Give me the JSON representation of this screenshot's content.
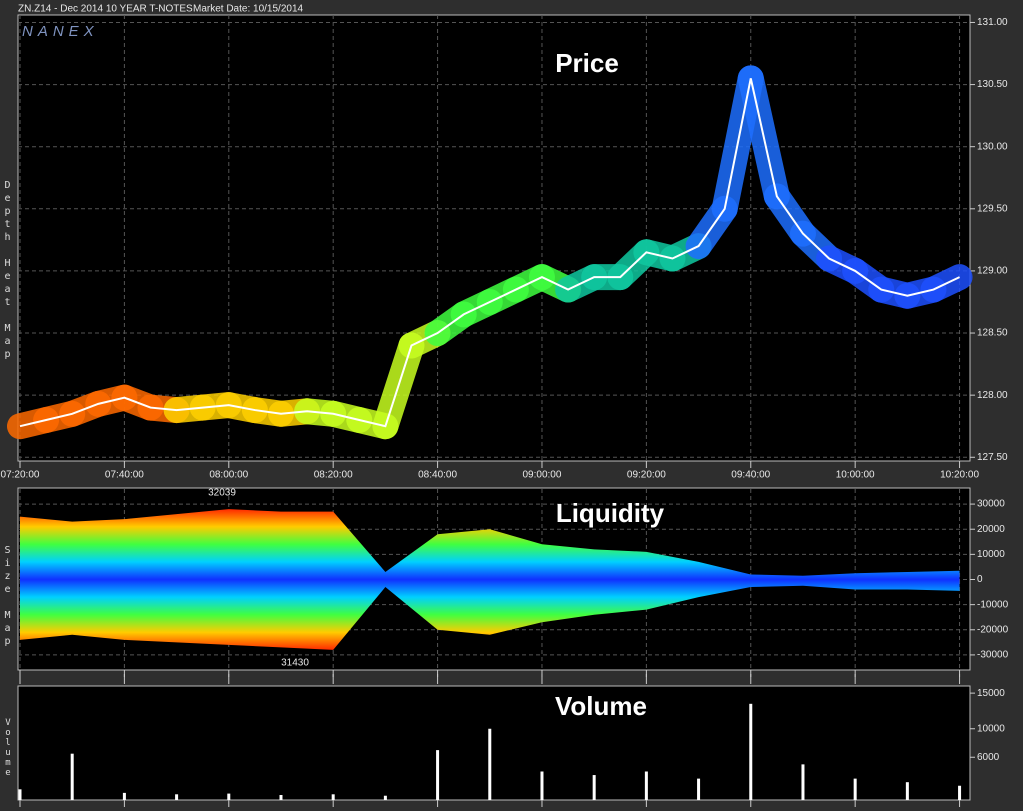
{
  "header": {
    "symbol": "ZN.Z14 - Dec 2014 10 YEAR T-NOTES",
    "market_date": "Market Date: 10/15/2014",
    "brand": "NANEX"
  },
  "chart_data": [
    {
      "type": "line",
      "title": "Price",
      "y_label": "Depth Heat Map",
      "x": [
        "07:20:00",
        "07:25:00",
        "07:30:00",
        "07:35:00",
        "07:40:00",
        "07:45:00",
        "07:50:00",
        "07:55:00",
        "08:00:00",
        "08:05:00",
        "08:10:00",
        "08:15:00",
        "08:20:00",
        "08:25:00",
        "08:30:00",
        "08:35:00",
        "08:40:00",
        "08:45:00",
        "08:50:00",
        "08:55:00",
        "09:00:00",
        "09:05:00",
        "09:10:00",
        "09:15:00",
        "09:20:00",
        "09:25:00",
        "09:30:00",
        "09:35:00",
        "09:40:00",
        "09:45:00",
        "09:50:00",
        "09:55:00",
        "10:00:00",
        "10:05:00",
        "10:10:00",
        "10:15:00",
        "10:20:00"
      ],
      "series": [
        {
          "color": "#ffffff",
          "values": [
            127.75,
            127.8,
            127.85,
            127.93,
            127.98,
            127.9,
            127.88,
            127.9,
            127.92,
            127.88,
            127.85,
            127.87,
            127.85,
            127.8,
            127.75,
            128.4,
            128.5,
            128.65,
            128.75,
            128.85,
            128.95,
            128.85,
            128.95,
            128.95,
            129.15,
            129.1,
            129.2,
            129.5,
            130.55,
            129.6,
            129.3,
            129.1,
            129.0,
            128.85,
            128.8,
            128.85,
            128.95
          ]
        }
      ],
      "heat_colors": [
        "#ff6a00",
        "#ffd000",
        "#c8ff20",
        "#40ff40",
        "#10c8a0",
        "#1e6fff",
        "#1e50ff"
      ],
      "xlim": [
        "07:20:00",
        "10:22:00"
      ],
      "xticks": [
        "07:20:00",
        "07:40:00",
        "08:00:00",
        "08:20:00",
        "08:40:00",
        "09:00:00",
        "09:20:00",
        "09:40:00",
        "10:00:00",
        "10:20:00"
      ],
      "ylim": [
        127.47,
        131.06
      ],
      "yticks": [
        {
          "value": 127.5,
          "label": "127.50"
        },
        {
          "value": 128,
          "label": "128.00"
        },
        {
          "value": 128.5,
          "label": "128.50"
        },
        {
          "value": 129,
          "label": "129.00"
        },
        {
          "value": 129.5,
          "label": "129.50"
        },
        {
          "value": 130,
          "label": "130.00"
        },
        {
          "value": 130.5,
          "label": "130.50"
        },
        {
          "value": 131,
          "label": "131.00"
        }
      ],
      "grid": true
    },
    {
      "type": "area",
      "title": "Liquidity",
      "y_label": "Size Map",
      "x": [
        "07:20:00",
        "07:30:00",
        "07:40:00",
        "07:50:00",
        "08:00:00",
        "08:10:00",
        "08:20:00",
        "08:30:00",
        "08:40:00",
        "08:50:00",
        "09:00:00",
        "09:10:00",
        "09:20:00",
        "09:30:00",
        "09:40:00",
        "09:50:00",
        "10:00:00",
        "10:10:00",
        "10:20:00"
      ],
      "series": [
        {
          "colors": [
            "#ff2a00",
            "#ffcc00",
            "#40ff40",
            "#00d0ff",
            "#1030ff"
          ],
          "values": [
            25000,
            23000,
            24000,
            26000,
            28000,
            27000,
            27000,
            3000,
            18000,
            20000,
            14000,
            12000,
            11000,
            7000,
            2000,
            1500,
            2500,
            3000,
            3500
          ]
        },
        {
          "colors": [
            "#1030ff",
            "#00d0ff",
            "#40ff40",
            "#ffcc00",
            "#ff2a00"
          ],
          "values": [
            -24000,
            -22000,
            -24000,
            -25000,
            -26000,
            -27000,
            -28000,
            -3000,
            -20000,
            -22000,
            -17000,
            -14000,
            -12000,
            -7000,
            -3000,
            -2500,
            -4000,
            -4000,
            -4500
          ]
        }
      ],
      "annotations": [
        "32039",
        "31430"
      ],
      "ylim": [
        -36000,
        36000
      ],
      "yticks": [
        -30000,
        -20000,
        -10000,
        0,
        10000,
        20000,
        30000
      ],
      "grid": true
    },
    {
      "type": "bar",
      "title": "Volume",
      "y_label": "Volume",
      "color": "#ffffff",
      "x": [
        "07:20:00",
        "07:30:00",
        "07:40:00",
        "07:50:00",
        "08:00:00",
        "08:10:00",
        "08:20:00",
        "08:30:00",
        "08:40:00",
        "08:50:00",
        "09:00:00",
        "09:10:00",
        "09:20:00",
        "09:30:00",
        "09:40:00",
        "09:50:00",
        "10:00:00",
        "10:10:00",
        "10:20:00"
      ],
      "values": [
        1500,
        6500,
        1000,
        800,
        900,
        700,
        800,
        600,
        7000,
        10000,
        4000,
        3500,
        4000,
        3000,
        13500,
        5000,
        3000,
        2500,
        2000
      ],
      "ylim": [
        0,
        16000
      ],
      "yticks": [
        6000,
        10000,
        15000
      ],
      "grid": false
    }
  ]
}
